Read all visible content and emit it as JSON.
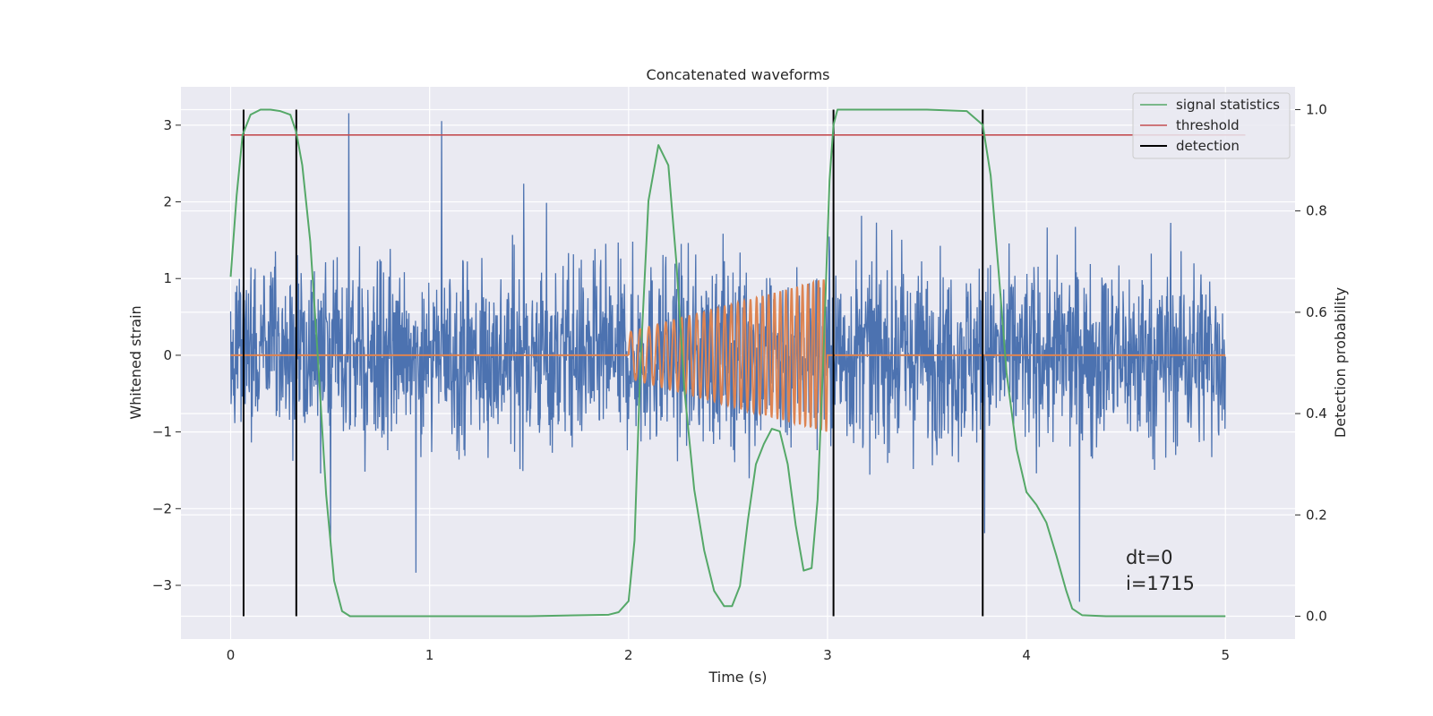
{
  "chart_data": {
    "type": "line",
    "title": "Concatenated waveforms",
    "xlabel": "Time (s)",
    "ylabel": "Whitened strain",
    "y2label": "Detection probability",
    "xlim": [
      -0.25,
      5.35
    ],
    "ylim": [
      -3.7,
      3.5
    ],
    "y2lim": [
      -0.045,
      1.045
    ],
    "x_ticks": [
      0,
      1,
      2,
      3,
      4,
      5
    ],
    "y_ticks": [
      -3,
      -2,
      -1,
      0,
      1,
      2,
      3
    ],
    "y_tick_labels": [
      "−3",
      "−2",
      "−1",
      "0",
      "1",
      "2",
      "3"
    ],
    "y2_ticks": [
      0.0,
      0.2,
      0.4,
      0.6,
      0.8,
      1.0
    ],
    "y2_tick_labels": [
      "0.0",
      "0.2",
      "0.4",
      "0.6",
      "0.8",
      "1.0"
    ],
    "grid": true,
    "legend_position": "top-right",
    "legend": [
      {
        "name": "signal statistics",
        "color": "#55a868"
      },
      {
        "name": "threshold",
        "color": "#c44e52"
      },
      {
        "name": "detection",
        "color": "#000000"
      }
    ],
    "noise": {
      "x_range": [
        0,
        5
      ],
      "typical_amplitude": 0.6,
      "extremes": [
        -3.4,
        3.4
      ],
      "color": "#4c72b0"
    },
    "injected_signal": {
      "color": "#dd8452",
      "x_range": [
        2.0,
        3.0
      ],
      "amplitude_start": 0.3,
      "amplitude_end": 1.0,
      "cycles": 30,
      "baseline": 0
    },
    "threshold": {
      "x": [
        0,
        5.1
      ],
      "probability": 0.95
    },
    "detections": [
      0.065,
      0.33,
      3.03,
      3.78
    ],
    "detection_span_probability": [
      0.0,
      1.0
    ],
    "signal_statistics": {
      "x": [
        0,
        0.03,
        0.06,
        0.1,
        0.15,
        0.2,
        0.25,
        0.3,
        0.33,
        0.36,
        0.4,
        0.44,
        0.48,
        0.52,
        0.56,
        0.6,
        0.7,
        1.0,
        1.5,
        1.9,
        1.95,
        2.0,
        2.03,
        2.06,
        2.1,
        2.15,
        2.2,
        2.24,
        2.28,
        2.33,
        2.38,
        2.43,
        2.48,
        2.52,
        2.56,
        2.6,
        2.64,
        2.68,
        2.72,
        2.76,
        2.8,
        2.84,
        2.88,
        2.92,
        2.95,
        2.98,
        3.01,
        3.03,
        3.05,
        3.1,
        3.2,
        3.5,
        3.7,
        3.78,
        3.82,
        3.86,
        3.9,
        3.95,
        4.0,
        4.05,
        4.1,
        4.15,
        4.2,
        4.23,
        4.28,
        4.4,
        4.8,
        5.0
      ],
      "probability": [
        0.67,
        0.83,
        0.95,
        0.99,
        1.0,
        1.0,
        0.997,
        0.99,
        0.955,
        0.89,
        0.74,
        0.5,
        0.24,
        0.07,
        0.01,
        0.0,
        0.0,
        0.0,
        0.0,
        0.003,
        0.008,
        0.03,
        0.15,
        0.5,
        0.82,
        0.93,
        0.89,
        0.7,
        0.45,
        0.25,
        0.13,
        0.05,
        0.02,
        0.02,
        0.06,
        0.19,
        0.3,
        0.34,
        0.37,
        0.365,
        0.3,
        0.18,
        0.09,
        0.095,
        0.23,
        0.52,
        0.86,
        0.97,
        1.0,
        1.0,
        1.0,
        1.0,
        0.997,
        0.97,
        0.87,
        0.68,
        0.48,
        0.33,
        0.245,
        0.22,
        0.185,
        0.12,
        0.05,
        0.015,
        0.002,
        0.0,
        0.0,
        0.0
      ]
    },
    "annotations": [
      "dt=0",
      "i=1715"
    ]
  }
}
